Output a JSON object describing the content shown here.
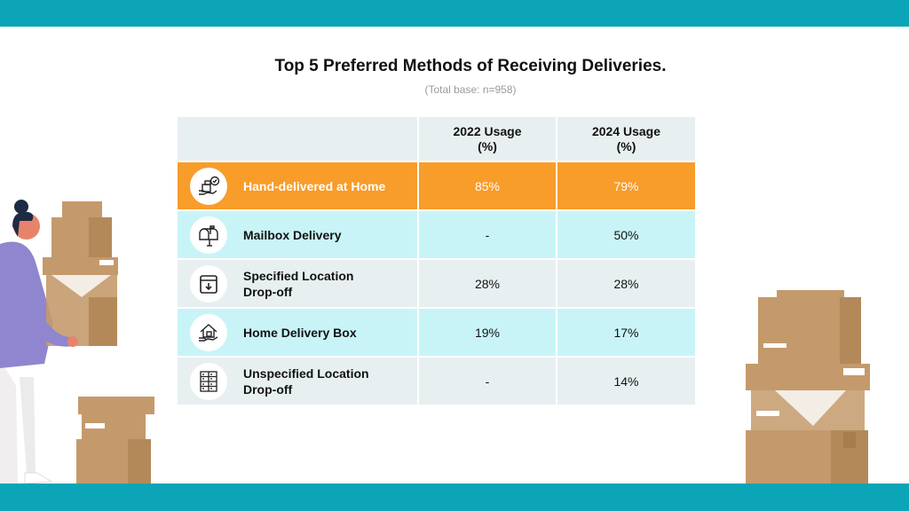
{
  "title": "Top 5 Preferred Methods of Receiving Deliveries.",
  "subtitle": "(Total base: n=958)",
  "table": {
    "headers": [
      "",
      "2022 Usage\n(%)",
      "2024 Usage\n(%)"
    ],
    "rows": [
      {
        "method": "Hand-delivered at Home",
        "icon": "hand-delivery-icon",
        "y2022": "85%",
        "y2024": "79%"
      },
      {
        "method": "Mailbox Delivery",
        "icon": "mailbox-icon",
        "y2022": "-",
        "y2024": "50%"
      },
      {
        "method": "Specified Location Drop-off",
        "icon": "dropbox-icon",
        "y2022": "28%",
        "y2024": "28%"
      },
      {
        "method": "Home Delivery Box",
        "icon": "home-delivery-box-icon",
        "y2022": "19%",
        "y2024": "17%"
      },
      {
        "method": "Unspecified Location Drop-off",
        "icon": "parcel-locker-icon",
        "y2022": "-",
        "y2024": "14%"
      }
    ]
  },
  "colors": {
    "accent": "#0ba5b7",
    "highlight": "#f89c2a",
    "cyan_row": "#c9f4f7",
    "grey_row": "#e8eff1"
  }
}
